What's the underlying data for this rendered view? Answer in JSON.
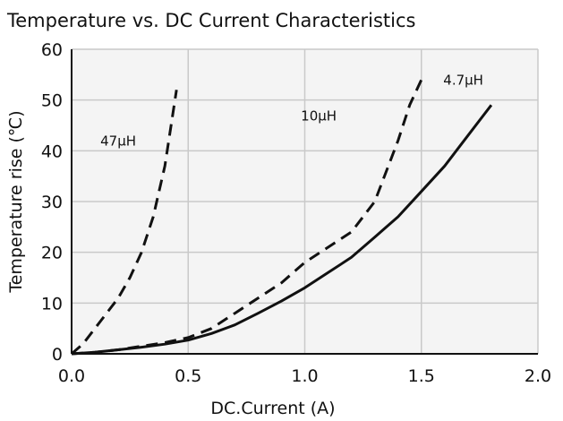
{
  "chart_data": {
    "type": "line",
    "title": "Temperature vs. DC Current Characteristics",
    "xlabel": "DC.Current (A)",
    "ylabel": "Temperature rise (℃)",
    "xlim": [
      0,
      2.0
    ],
    "ylim": [
      0,
      60
    ],
    "x_ticks": [
      0,
      0.5,
      1.0,
      1.5,
      2.0
    ],
    "x_tick_labels": [
      "0.0",
      "0.5",
      "1.0",
      "1.5",
      "2.0"
    ],
    "y_ticks": [
      0,
      10,
      20,
      30,
      40,
      50,
      60
    ],
    "y_tick_labels": [
      "0",
      "10",
      "20",
      "30",
      "40",
      "50",
      "60"
    ],
    "grid": true,
    "series": [
      {
        "name": "47μH",
        "style": "dashed",
        "x": [
          0.0,
          0.05,
          0.1,
          0.15,
          0.2,
          0.25,
          0.3,
          0.35,
          0.4,
          0.43,
          0.45
        ],
        "y": [
          0,
          2,
          5,
          8,
          11,
          15,
          20,
          27,
          37,
          46,
          52
        ]
      },
      {
        "name": "10μH",
        "style": "dashed",
        "x": [
          0.0,
          0.1,
          0.2,
          0.3,
          0.4,
          0.5,
          0.6,
          0.7,
          0.8,
          0.9,
          1.0,
          1.1,
          1.2,
          1.3,
          1.4,
          1.45,
          1.5
        ],
        "y": [
          0,
          0.3,
          0.8,
          1.5,
          2.2,
          3.2,
          5,
          8,
          11,
          14,
          18,
          21,
          24,
          30,
          42,
          49,
          54
        ]
      },
      {
        "name": "4.7μH",
        "style": "solid",
        "x": [
          0.0,
          0.1,
          0.2,
          0.3,
          0.4,
          0.5,
          0.6,
          0.7,
          0.8,
          0.9,
          1.0,
          1.1,
          1.2,
          1.3,
          1.4,
          1.5,
          1.6,
          1.7,
          1.8
        ],
        "y": [
          0,
          0.3,
          0.8,
          1.3,
          1.9,
          2.7,
          4,
          5.7,
          8,
          10.4,
          13,
          16,
          19,
          23,
          27,
          32,
          37,
          43,
          49
        ]
      }
    ],
    "annotations": [
      {
        "text": "47μH",
        "series": 0,
        "x": 0.2,
        "y": 41
      },
      {
        "text": "10μH",
        "series": 1,
        "x": 1.06,
        "y": 46
      },
      {
        "text": "4.7μH",
        "series": 2,
        "x": 1.68,
        "y": 53
      }
    ]
  },
  "colors": {
    "plot_background": "#f4f4f4",
    "grid": "#c9c9c9",
    "line": "#111111"
  }
}
